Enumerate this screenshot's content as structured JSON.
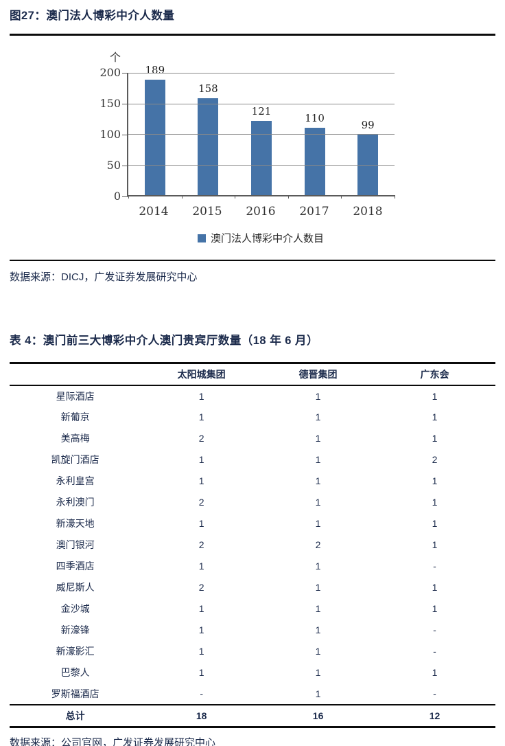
{
  "figure": {
    "title": "图27：澳门法人博彩中介人数量",
    "source": "数据来源：DICJ，广发证券发展研究中心"
  },
  "chart_data": {
    "type": "bar",
    "title": "图27：澳门法人博彩中介人数量",
    "categories": [
      "2014",
      "2015",
      "2016",
      "2017",
      "2018"
    ],
    "values": [
      189,
      158,
      121,
      110,
      99
    ],
    "legend": [
      "澳门法人博彩中介人数目"
    ],
    "xlabel": "",
    "ylabel": "个",
    "ylim": [
      0,
      200
    ],
    "yticks": [
      0,
      50,
      100,
      150,
      200
    ],
    "grid": true,
    "legend_position": "bottom"
  },
  "table_section": {
    "title": "表 4：澳门前三大博彩中介人澳门贵宾厅数量（18 年 6 月）",
    "columns": [
      "",
      "太阳城集团",
      "德晋集团",
      "广东会"
    ],
    "rows": [
      [
        "星际酒店",
        "1",
        "1",
        "1"
      ],
      [
        "新葡京",
        "1",
        "1",
        "1"
      ],
      [
        "美高梅",
        "2",
        "1",
        "1"
      ],
      [
        "凯旋门酒店",
        "1",
        "1",
        "2"
      ],
      [
        "永利皇宫",
        "1",
        "1",
        "1"
      ],
      [
        "永利澳门",
        "2",
        "1",
        "1"
      ],
      [
        "新濠天地",
        "1",
        "1",
        "1"
      ],
      [
        "澳门银河",
        "2",
        "2",
        "1"
      ],
      [
        "四季酒店",
        "1",
        "1",
        "-"
      ],
      [
        "威尼斯人",
        "2",
        "1",
        "1"
      ],
      [
        "金沙城",
        "1",
        "1",
        "1"
      ],
      [
        "新濠锋",
        "1",
        "1",
        "-"
      ],
      [
        "新濠影汇",
        "1",
        "1",
        "-"
      ],
      [
        "巴黎人",
        "1",
        "1",
        "1"
      ],
      [
        "罗斯福酒店",
        "-",
        "1",
        "-"
      ]
    ],
    "total_row": [
      "总计",
      "18",
      "16",
      "12"
    ],
    "source": "数据来源：公司官网，广发证券发展研究中心"
  },
  "colors": {
    "bar": "#4573a7",
    "heading_text": "#1b2a4b",
    "body_text": "#1b2a4b",
    "chart_text": "#333333",
    "gridline": "#8a8a8a",
    "axis": "#5a5a5a",
    "rule": "#0b0b0b"
  }
}
